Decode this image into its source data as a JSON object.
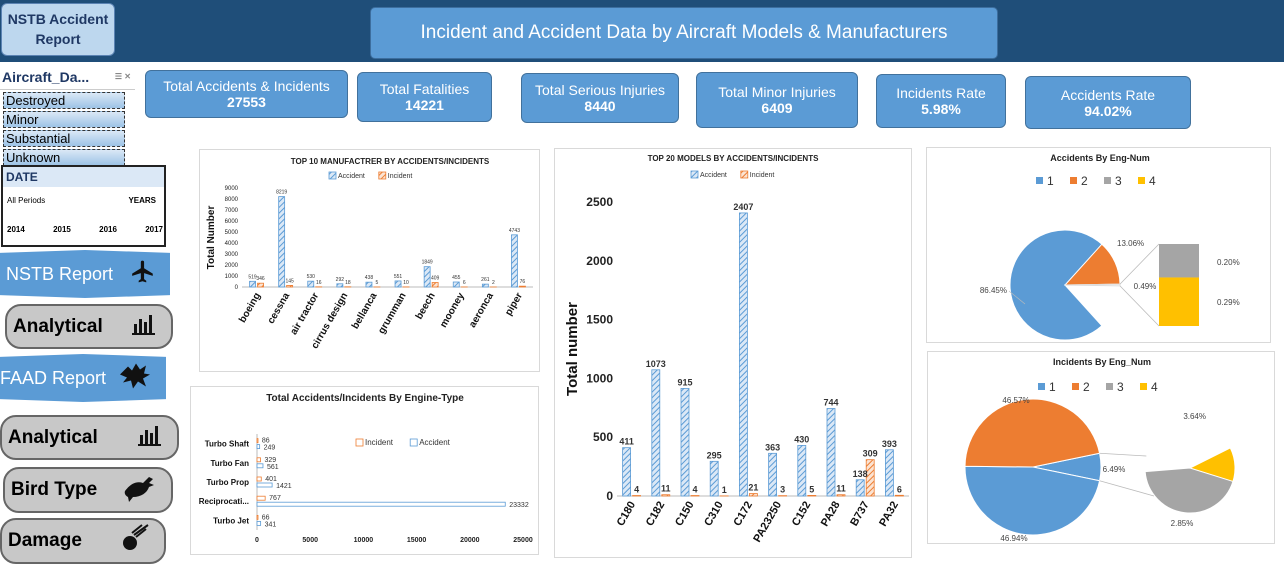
{
  "dashboard_title": "Incident and Accident Data by Aircraft Models & Manufacturers",
  "report_button": "NSTB Accident Report",
  "kpis": [
    {
      "label": "Total Accidents & Incidents",
      "value": "27553"
    },
    {
      "label": "Total Fatalities",
      "value": "14221"
    },
    {
      "label": "Total Serious Injuries",
      "value": "8440"
    },
    {
      "label": "Total Minor Injuries",
      "value": "6409"
    },
    {
      "label": "Incidents Rate",
      "value": "5.98%"
    },
    {
      "label": "Accidents Rate",
      "value": "94.02%"
    }
  ],
  "slicer": {
    "title": "Aircraft_Da...",
    "items": [
      "Destroyed",
      "Minor",
      "Substantial",
      "Unknown"
    ]
  },
  "timeline": {
    "title": "DATE",
    "period": "All Periods",
    "unit": "YEARS",
    "years": [
      "2014",
      "2015",
      "2016",
      "2017"
    ]
  },
  "nav": [
    {
      "label": "NSTB Report",
      "icon": "airplane-icon"
    },
    {
      "label": "Analytical",
      "icon": "bar-chart-icon"
    },
    {
      "label": "FAAD Report",
      "icon": "eagle-icon"
    },
    {
      "label": "Analytical",
      "icon": "bar-chart-icon"
    },
    {
      "label": "Bird Type",
      "icon": "bird-icon"
    },
    {
      "label": "Damage",
      "icon": "meteor-icon"
    }
  ],
  "colors": {
    "accident": "#5b9bd5",
    "incident": "#ed7d31",
    "gray": "#a5a5a5",
    "yellow": "#ffc000",
    "header": "#1f4e79"
  },
  "chart_data": [
    {
      "type": "bar",
      "title": "TOP 10 MANUFACTRER BY ACCIDENTS/INCIDENTS",
      "ylabel": "Total Number",
      "xlabel": "",
      "ylim": [
        0,
        9000
      ],
      "yticks": [
        0,
        1000,
        2000,
        3000,
        4000,
        5000,
        6000,
        7000,
        8000,
        9000
      ],
      "legend": "top",
      "categories": [
        "boeing",
        "cessna",
        "air tractor",
        "cirrus design",
        "bellanca",
        "grumman",
        "beech",
        "mooney",
        "aeronca",
        "piper"
      ],
      "series": [
        {
          "name": "Accident",
          "values": [
            519,
            8219,
            530,
            292,
            438,
            551,
            1849,
            455,
            261,
            4743
          ]
        },
        {
          "name": "Incident",
          "values": [
            346,
            145,
            16,
            18,
            5,
            10,
            409,
            6,
            2,
            76
          ]
        }
      ]
    },
    {
      "type": "bar",
      "title": "TOP 20 MODELS BY ACCIDENTS/INCIDENTS",
      "ylabel": "Total number",
      "xlabel": "",
      "ylim": [
        0,
        2500
      ],
      "yticks": [
        0,
        500,
        1000,
        1500,
        2000,
        2500
      ],
      "legend": "top",
      "categories": [
        "C180",
        "C182",
        "C150",
        "C310",
        "C172",
        "PA23250",
        "C152",
        "PA28",
        "B737",
        "PA32"
      ],
      "series": [
        {
          "name": "Accident",
          "values": [
            411,
            1073,
            915,
            295,
            2407,
            363,
            430,
            744,
            138,
            393
          ]
        },
        {
          "name": "Incident",
          "values": [
            4,
            11,
            4,
            1,
            21,
            3,
            5,
            11,
            309,
            6
          ]
        }
      ]
    },
    {
      "type": "bar",
      "orientation": "horizontal",
      "title": "Total Accidents/Incidents By Engine-Type",
      "xlim": [
        0,
        25000
      ],
      "xticks": [
        0,
        5000,
        10000,
        15000,
        20000,
        25000
      ],
      "legend": "top",
      "categories": [
        "Turbo Shaft",
        "Turbo Fan",
        "Turbo Prop",
        "Reciprocati...",
        "Turbo Jet"
      ],
      "series": [
        {
          "name": "Incident",
          "values": [
            86,
            329,
            401,
            767,
            66
          ]
        },
        {
          "name": "Accident",
          "values": [
            249,
            561,
            1421,
            23332,
            341
          ]
        }
      ]
    },
    {
      "type": "pie",
      "subtype": "pie-of-pie",
      "title": "Accidents By Eng-Num",
      "legend": "top",
      "categories": [
        "1",
        "2",
        "3",
        "4"
      ],
      "main_labels": [
        "86.45%",
        "13.06%"
      ],
      "secondary_labels": [
        "0.20%",
        "0.29%"
      ],
      "group_label": "0.49%",
      "values": [
        86.45,
        13.06,
        0.2,
        0.29
      ]
    },
    {
      "type": "pie",
      "subtype": "pie-of-pie",
      "title": "Incidents By Eng_Num",
      "legend": "top",
      "categories": [
        "1",
        "2",
        "3",
        "4"
      ],
      "main_labels": [
        "46.94%",
        "46.57%"
      ],
      "secondary_labels": [
        "3.64%",
        "2.85%"
      ],
      "group_label": "6.49%",
      "values": [
        46.94,
        46.57,
        2.85,
        3.64
      ]
    }
  ]
}
